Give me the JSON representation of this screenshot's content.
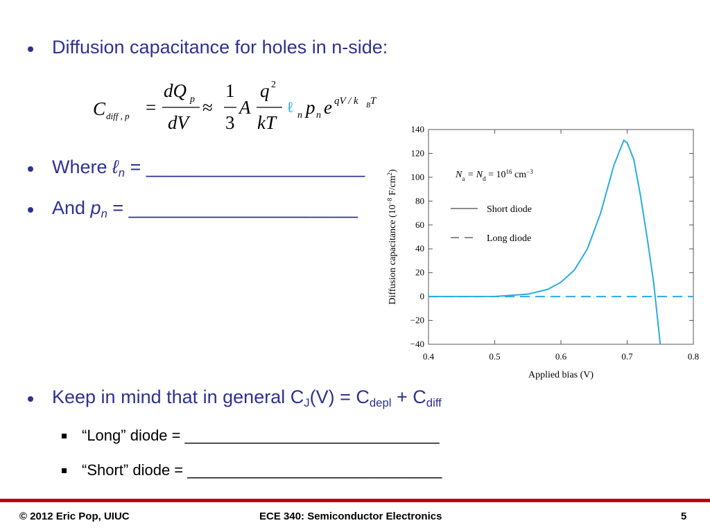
{
  "slide": {
    "bullets": [
      {
        "text": "Diffusion capacitance for holes in n-side:"
      },
      {
        "parts": [
          "Where ",
          "ℓ",
          "n",
          " = ",
          "_____________________"
        ]
      },
      {
        "parts": [
          "And ",
          "p",
          "n",
          " = ",
          "______________________"
        ]
      },
      {
        "parts": [
          "Keep in mind that in general C",
          "J",
          "(V) = C",
          "depl",
          " + C",
          "diff"
        ]
      }
    ],
    "sub_bullets": [
      "“Long” diode = ______________________________",
      "“Short” diode = ______________________________"
    ],
    "equation": {
      "lhs": "C",
      "lhs_sub": "diff , p",
      "eq": "=",
      "num": "dQ",
      "num_sub": "p",
      "den": "dV",
      "approx": "≈",
      "one": "1",
      "three": "3",
      "A": "A",
      "q": "q",
      "q_sup": "2",
      "kT": "kT",
      "ell": "ℓ",
      "ell_sub": "n",
      "p": "p",
      "p_sub": "n",
      "e": "e",
      "exp": "qV / k",
      "exp_sub": "B",
      "exp_T": "T"
    },
    "footer": {
      "left": "© 2012 Eric Pop, UIUC",
      "center": "ECE 340: Semiconductor Electronics",
      "right": "5"
    }
  },
  "chart_data": {
    "type": "line",
    "xlabel": "Applied bias (V)",
    "ylabel_parts": [
      "Diffusion capacitance (10",
      "−8",
      " F/cm",
      "2",
      ")"
    ],
    "annotation_parts": [
      "N",
      "a",
      " = N",
      "d",
      " = 10",
      "16",
      " cm",
      "−3"
    ],
    "xlim": [
      0.4,
      0.8
    ],
    "xticks": [
      0.4,
      0.5,
      0.6,
      0.7,
      0.8
    ],
    "ylim": [
      -40,
      140
    ],
    "yticks": [
      {
        "value": -40,
        "label": "−40"
      },
      {
        "value": -20,
        "label": "−20"
      },
      0,
      20,
      40,
      60,
      80,
      100,
      120,
      140
    ],
    "series": [
      {
        "name": "Short diode",
        "color": "#29abe2",
        "dash": false,
        "x": [
          0.4,
          0.5,
          0.55,
          0.58,
          0.6,
          0.62,
          0.64,
          0.66,
          0.68,
          0.69,
          0.695,
          0.7,
          0.71,
          0.72,
          0.73,
          0.74,
          0.75
        ],
        "values": [
          0,
          0.1,
          2,
          6,
          12,
          22,
          40,
          70,
          110,
          124,
          131,
          129,
          115,
          85,
          50,
          12,
          -40
        ]
      },
      {
        "name": "Long diode",
        "color": "#29abe2",
        "dash": true,
        "x": [
          0.4,
          0.8
        ],
        "values": [
          0,
          0
        ]
      }
    ]
  }
}
